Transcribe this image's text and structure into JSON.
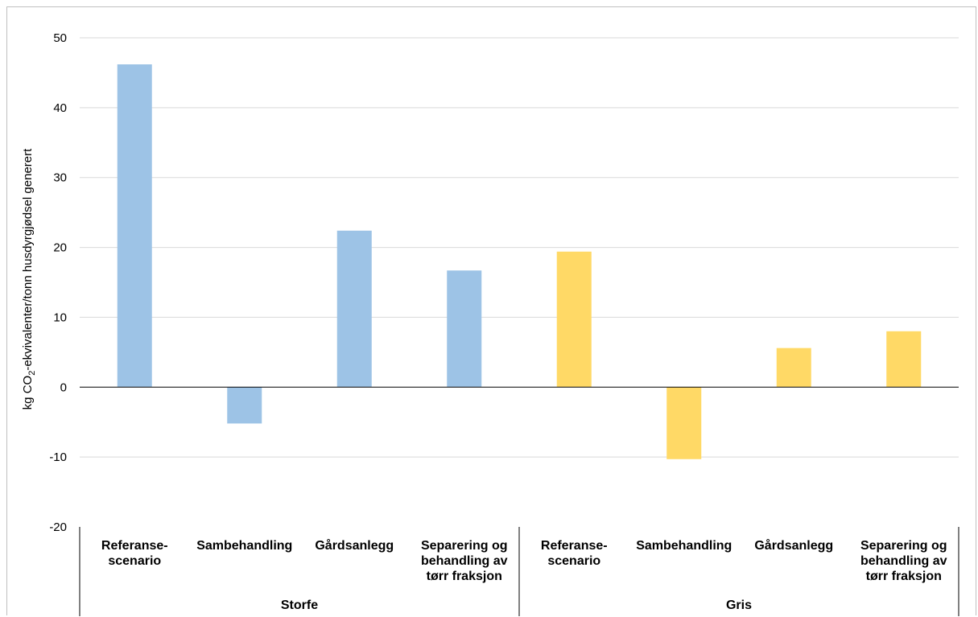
{
  "chart_data": {
    "type": "bar",
    "ylabel": "kg CO2-ekvivalenter/tonn husdyrgjødsel generert",
    "ylabel_parts": {
      "prefix": "kg CO",
      "subscript": "2",
      "suffix": "-ekvivalenter/tonn husdyrgjødsel generert"
    },
    "ylim": [
      -20,
      50
    ],
    "yticks": [
      -20,
      -10,
      0,
      10,
      20,
      30,
      40,
      50
    ],
    "grid": true,
    "groups": [
      {
        "name": "Storfe",
        "color": "#9dc3e6",
        "categories": [
          [
            "Referanse-",
            "scenario"
          ],
          [
            "Sambehandling"
          ],
          [
            "Gårdsanlegg"
          ],
          [
            "Separering og",
            "behandling av",
            "tørr fraksjon"
          ]
        ],
        "values": [
          46.2,
          -5.2,
          22.4,
          16.7
        ]
      },
      {
        "name": "Gris",
        "color": "#ffd966",
        "categories": [
          [
            "Referanse-",
            "scenario"
          ],
          [
            "Sambehandling"
          ],
          [
            "Gårdsanlegg"
          ],
          [
            "Separering og",
            "behandling av",
            "tørr fraksjon"
          ]
        ],
        "values": [
          19.4,
          -10.3,
          5.6,
          8.0
        ]
      }
    ]
  }
}
